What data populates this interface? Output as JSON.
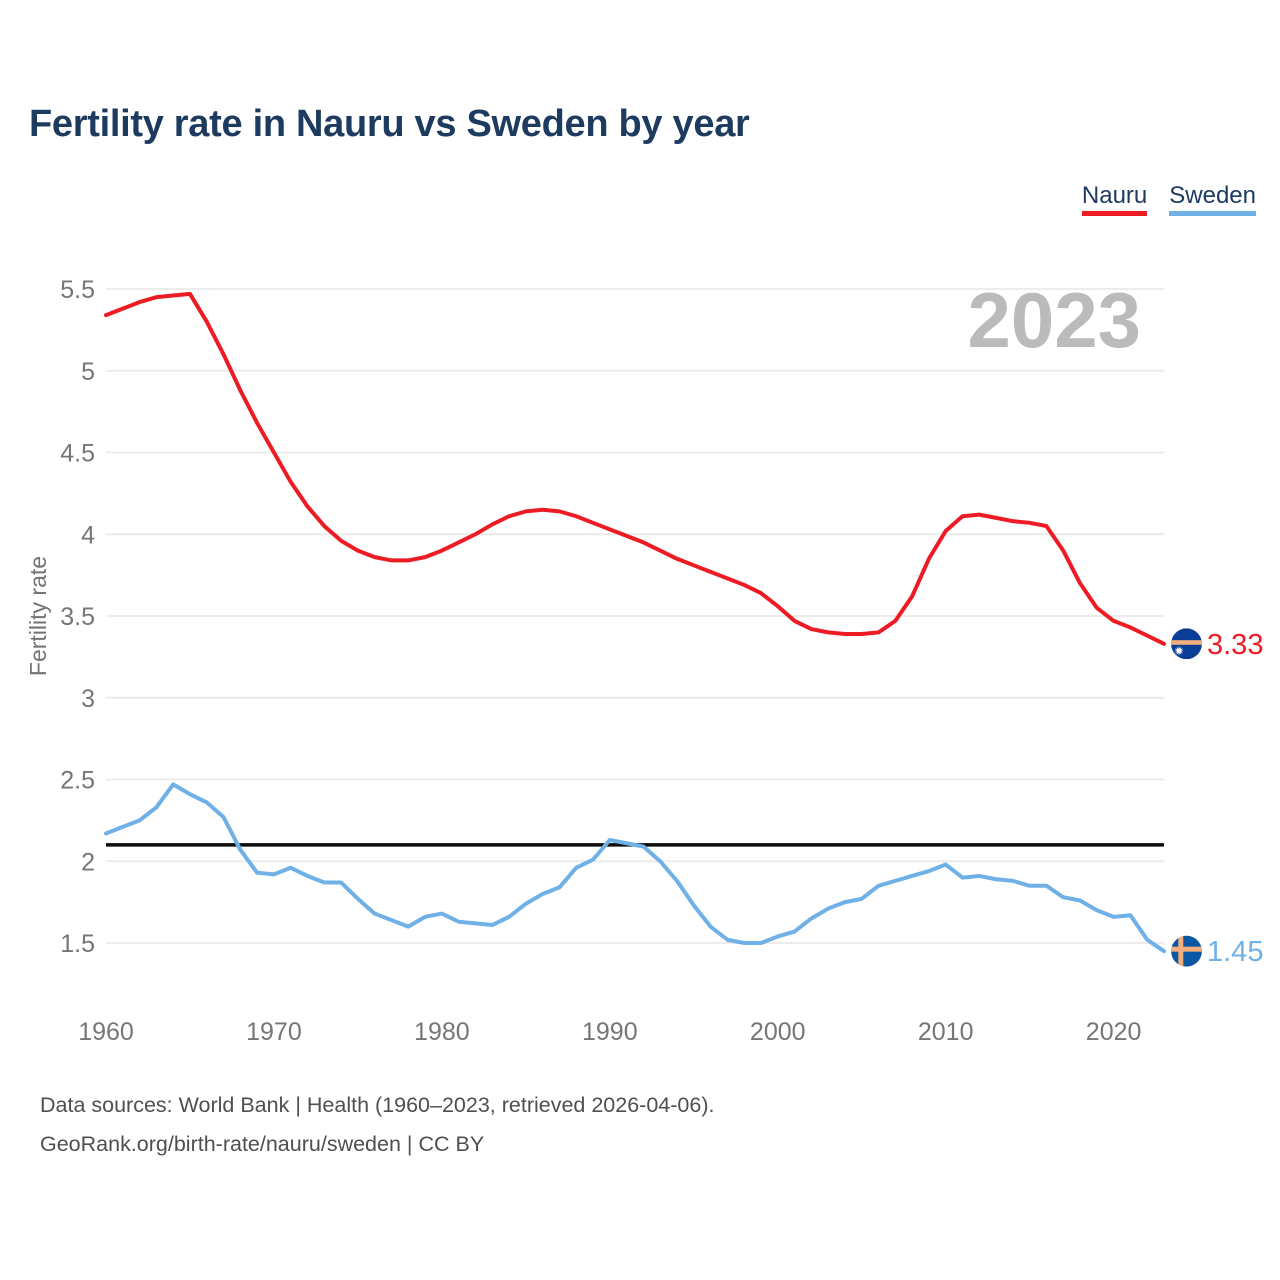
{
  "page": {
    "title": "Fertility rate in Nauru vs Sweden by year",
    "footer": {
      "line1": "Data sources: World Bank | Health (1960–2023, retrieved 2026-04-06).",
      "line2": "GeoRank.org/birth-rate/nauru/sweden | CC BY"
    }
  },
  "legend": [
    {
      "label": "Nauru",
      "color": "#ed1c24"
    },
    {
      "label": "Sweden",
      "color": "#6fb0e6"
    }
  ],
  "chart_data": {
    "type": "line",
    "title": "Fertility rate in Nauru vs Sweden by year",
    "xlabel": "",
    "ylabel": "Fertility rate",
    "watermark": "2023",
    "grid": "horizontal",
    "legend_position": "top-right",
    "xlim": [
      1960,
      2023
    ],
    "ylim": [
      1.2,
      5.62
    ],
    "y_ticks": [
      1.5,
      2,
      2.5,
      3,
      3.5,
      4,
      4.5,
      5,
      5.5
    ],
    "x_ticks": [
      1960,
      1970,
      1980,
      1990,
      2000,
      2010,
      2020
    ],
    "reference_line": {
      "value": 2.1,
      "color": "#0d0d0d"
    },
    "x": [
      1960,
      1961,
      1962,
      1963,
      1964,
      1965,
      1966,
      1967,
      1968,
      1969,
      1970,
      1971,
      1972,
      1973,
      1974,
      1975,
      1976,
      1977,
      1978,
      1979,
      1980,
      1981,
      1982,
      1983,
      1984,
      1985,
      1986,
      1987,
      1988,
      1989,
      1990,
      1991,
      1992,
      1993,
      1994,
      1995,
      1996,
      1997,
      1998,
      1999,
      2000,
      2001,
      2002,
      2003,
      2004,
      2005,
      2006,
      2007,
      2008,
      2009,
      2010,
      2011,
      2012,
      2013,
      2014,
      2015,
      2016,
      2017,
      2018,
      2019,
      2020,
      2021,
      2022,
      2023
    ],
    "series": [
      {
        "name": "Nauru",
        "color": "#ed1c24",
        "end_label": "3.33",
        "flag": {
          "type": "nauru",
          "circle": "#0a3e96",
          "band": "#f2ae7c",
          "star": "#ffffff"
        },
        "values": [
          5.34,
          5.38,
          5.42,
          5.45,
          5.46,
          5.47,
          5.3,
          5.1,
          4.88,
          4.68,
          4.5,
          4.32,
          4.17,
          4.05,
          3.96,
          3.9,
          3.86,
          3.84,
          3.84,
          3.86,
          3.9,
          3.95,
          4.0,
          4.06,
          4.11,
          4.14,
          4.15,
          4.14,
          4.11,
          4.07,
          4.03,
          3.99,
          3.95,
          3.9,
          3.85,
          3.81,
          3.77,
          3.73,
          3.69,
          3.64,
          3.56,
          3.47,
          3.42,
          3.4,
          3.39,
          3.39,
          3.4,
          3.47,
          3.62,
          3.85,
          4.02,
          4.11,
          4.12,
          4.1,
          4.08,
          4.07,
          4.05,
          3.9,
          3.7,
          3.55,
          3.47,
          3.43,
          3.38,
          3.33
        ]
      },
      {
        "name": "Sweden",
        "color": "#6fb0e6",
        "end_label": "1.45",
        "flag": {
          "type": "sweden",
          "circle": "#0b57a4",
          "band": "#f2ae7c"
        },
        "values": [
          2.17,
          2.21,
          2.25,
          2.33,
          2.47,
          2.41,
          2.36,
          2.27,
          2.07,
          1.93,
          1.92,
          1.96,
          1.91,
          1.87,
          1.87,
          1.77,
          1.68,
          1.64,
          1.6,
          1.66,
          1.68,
          1.63,
          1.62,
          1.61,
          1.66,
          1.74,
          1.8,
          1.84,
          1.96,
          2.01,
          2.13,
          2.11,
          2.09,
          2.0,
          1.88,
          1.73,
          1.6,
          1.52,
          1.5,
          1.5,
          1.54,
          1.57,
          1.65,
          1.71,
          1.75,
          1.77,
          1.85,
          1.88,
          1.91,
          1.94,
          1.98,
          1.9,
          1.91,
          1.89,
          1.88,
          1.85,
          1.85,
          1.78,
          1.76,
          1.7,
          1.66,
          1.67,
          1.52,
          1.45
        ]
      }
    ]
  }
}
